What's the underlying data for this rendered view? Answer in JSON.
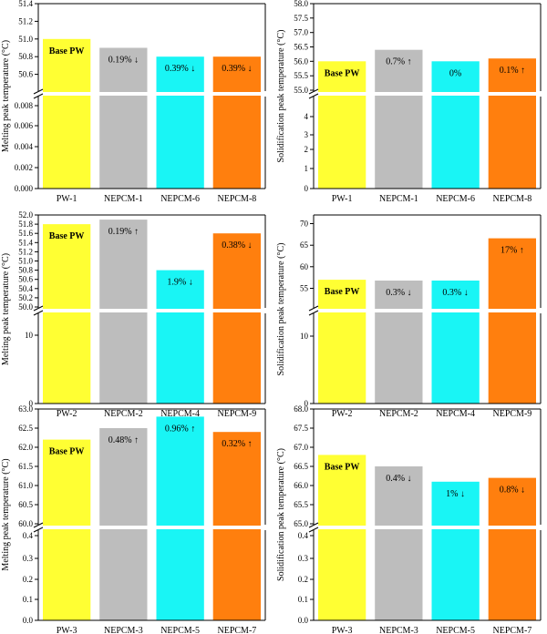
{
  "colors": {
    "yellow": "#ffff33",
    "gray": "#bdbdbd",
    "cyan": "#19f5f5",
    "orange": "#ff7f0e",
    "break": "#ffffff",
    "axis": "#000000"
  },
  "chart_data": [
    {
      "type": "bar",
      "title": "",
      "xlabel": "",
      "ylabel": "Melting peak temperature (°C)",
      "categories": [
        "PW-1",
        "NEPCM-1",
        "NEPCM-6",
        "NEPCM-8"
      ],
      "values": [
        51.0,
        50.9,
        50.8,
        50.8
      ],
      "bar_colors": [
        "yellow",
        "gray",
        "cyan",
        "orange"
      ],
      "annotations": [
        "Base PW",
        "0.19% ↓",
        "0.39% ↓",
        "0.39% ↓"
      ],
      "broken_axis": true,
      "upper_ylim": [
        50.4,
        51.4
      ],
      "upper_ticks": [
        "50.6",
        "50.8",
        "51.0",
        "51.2",
        "51.4"
      ],
      "lower_ylim": [
        0,
        0.009
      ],
      "lower_ticks": [
        "0.000",
        "0.002",
        "0.004",
        "0.006",
        "0.008"
      ]
    },
    {
      "type": "bar",
      "title": "",
      "xlabel": "",
      "ylabel": "Solidification peak temperature (°C)",
      "categories": [
        "PW-1",
        "NEPCM-1",
        "NEPCM-6",
        "NEPCM-8"
      ],
      "values": [
        56.0,
        56.4,
        56.0,
        56.1
      ],
      "bar_colors": [
        "yellow",
        "gray",
        "cyan",
        "orange"
      ],
      "annotations": [
        "Base PW",
        "0.7% ↑",
        "0%",
        "0.1% ↑"
      ],
      "broken_axis": true,
      "upper_ylim": [
        55.0,
        58.0
      ],
      "upper_ticks": [
        "55.0",
        "55.5",
        "56.0",
        "56.5",
        "57.0",
        "57.5",
        "58.0"
      ],
      "lower_ylim": [
        0,
        5
      ],
      "lower_ticks": [
        "0",
        "1",
        "2",
        "3",
        "4"
      ]
    },
    {
      "type": "bar",
      "title": "",
      "xlabel": "",
      "ylabel": "Melting peak temperature (°C)",
      "categories": [
        "PW-2",
        "NEPCM-2",
        "NEPCM-4",
        "NEPCM-9"
      ],
      "values": [
        51.8,
        51.9,
        50.8,
        51.6
      ],
      "bar_colors": [
        "yellow",
        "gray",
        "cyan",
        "orange"
      ],
      "annotations": [
        "Base PW",
        "0.19% ↑",
        "1.9% ↓",
        "0.38% ↓"
      ],
      "broken_axis": true,
      "upper_ylim": [
        50.0,
        52.0
      ],
      "upper_ticks": [
        "50.0",
        "50.2",
        "50.4",
        "50.6",
        "50.8",
        "51.0",
        "51.2",
        "51.4",
        "51.6",
        "51.8",
        "52.0"
      ],
      "lower_ylim": [
        0,
        20
      ],
      "lower_ticks": [
        "0",
        "10"
      ]
    },
    {
      "type": "bar",
      "title": "",
      "xlabel": "",
      "ylabel": "Solidification peak temperature (°C)",
      "categories": [
        "PW-2",
        "NEPCM-2",
        "NEPCM-4",
        "NEPCM-9"
      ],
      "values": [
        57.0,
        56.8,
        56.8,
        66.6
      ],
      "bar_colors": [
        "yellow",
        "gray",
        "cyan",
        "orange"
      ],
      "annotations": [
        "Base PW",
        "0.3% ↓",
        "0.3% ↓",
        "17% ↑"
      ],
      "broken_axis": true,
      "upper_ylim": [
        53,
        72
      ],
      "upper_ticks": [
        "55",
        "60",
        "65",
        "70"
      ],
      "lower_ylim": [
        0,
        20
      ],
      "lower_ticks": [
        "0",
        "10"
      ]
    },
    {
      "type": "bar",
      "title": "",
      "xlabel": "",
      "ylabel": "Melting peak temperature (°C)",
      "categories": [
        "PW-3",
        "NEPCM-3",
        "NEPCM-5",
        "NEPCM-7"
      ],
      "values": [
        62.2,
        62.5,
        62.8,
        62.4
      ],
      "bar_colors": [
        "yellow",
        "gray",
        "cyan",
        "orange"
      ],
      "annotations": [
        "Base PW",
        "0.48% ↑",
        "0.96% ↑",
        "0.32% ↑"
      ],
      "broken_axis": true,
      "upper_ylim": [
        60.0,
        63.0
      ],
      "upper_ticks": [
        "60.0",
        "60.5",
        "61.0",
        "61.5",
        "62.0",
        "62.5",
        "63.0"
      ],
      "lower_ylim": [
        0,
        0.5
      ],
      "lower_ticks": [
        "0.0",
        "0.1",
        "0.2",
        "0.3",
        "0.4"
      ]
    },
    {
      "type": "bar",
      "title": "",
      "xlabel": "",
      "ylabel": "Solidification peak temperature (°C)",
      "categories": [
        "PW-3",
        "NEPCM-3",
        "NEPCM-5",
        "NEPCM-7"
      ],
      "values": [
        66.8,
        66.5,
        66.1,
        66.2
      ],
      "bar_colors": [
        "yellow",
        "gray",
        "cyan",
        "orange"
      ],
      "annotations": [
        "Base PW",
        "0.4% ↓",
        "1% ↓",
        "0.8% ↓"
      ],
      "broken_axis": true,
      "upper_ylim": [
        65.0,
        68.0
      ],
      "upper_ticks": [
        "65.0",
        "65.5",
        "66.0",
        "66.5",
        "67.0",
        "67.5",
        "68.0"
      ],
      "lower_ylim": [
        0,
        0.5
      ],
      "lower_ticks": [
        "0.0",
        "0.1",
        "0.2",
        "0.3",
        "0.4"
      ]
    }
  ]
}
